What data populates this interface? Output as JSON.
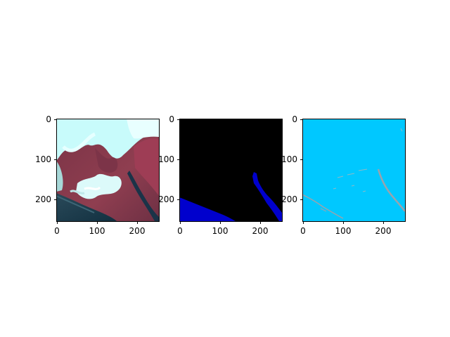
{
  "figure": {
    "panels": [
      {
        "id": "satellite-image",
        "tick_step": 100,
        "extent": 256
      },
      {
        "id": "water-mask",
        "tick_step": 100,
        "extent": 256
      },
      {
        "id": "edge-map",
        "tick_step": 100,
        "extent": 256
      }
    ],
    "xticks": [
      "0",
      "100",
      "200"
    ],
    "yticks": [
      "0",
      "100",
      "200"
    ],
    "colors": {
      "mask_background": "#000000",
      "mask_water": "#0000cd",
      "edge_background": "#00c8ff",
      "edge_lines": "#9aa3ad",
      "land_red": "#8c3a4c",
      "cloud_cyan": "#c8fbfb",
      "sea_dark": "#1f3a48"
    }
  }
}
